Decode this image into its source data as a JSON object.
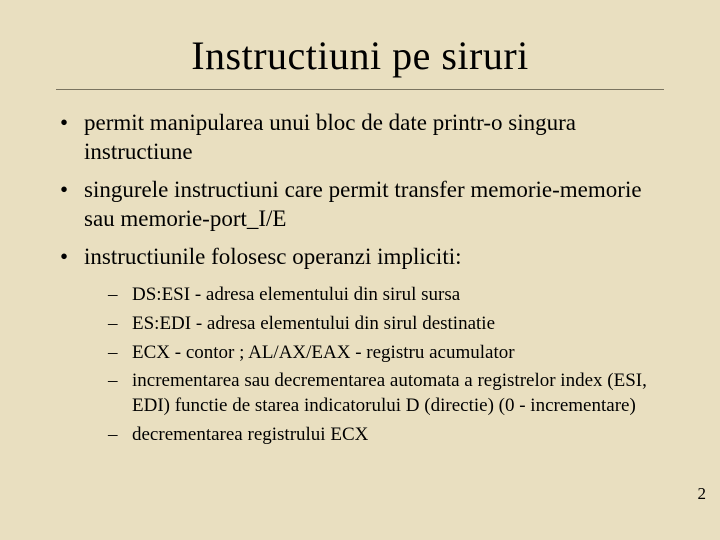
{
  "colors": {
    "background": "#e9dfc0",
    "text": "#000000",
    "rule": "#7a7460"
  },
  "typography": {
    "family": "Times New Roman",
    "title_fontsize": 40,
    "bullet_fontsize": 23,
    "subbullet_fontsize": 19,
    "pagenum_fontsize": 17
  },
  "title": "Instructiuni pe siruri",
  "bullets": {
    "0": "permit manipularea unui bloc de date printr-o singura instructiune",
    "1": "singurele instructiuni care permit transfer memorie-memorie sau memorie-port_I/E",
    "2": "instructiunile folosesc operanzi impliciti:"
  },
  "subbullets": {
    "0": "DS:ESI - adresa elementului din sirul sursa",
    "1": "ES:EDI - adresa elementului din sirul destinatie",
    "2": "ECX - contor   ;   AL/AX/EAX - registru acumulator",
    "3": "incrementarea sau decrementarea automata a registrelor index (ESI, EDI) functie de starea indicatorului D (directie) (0 - incrementare)",
    "4": "decrementarea registrului ECX"
  },
  "page_number": "2"
}
